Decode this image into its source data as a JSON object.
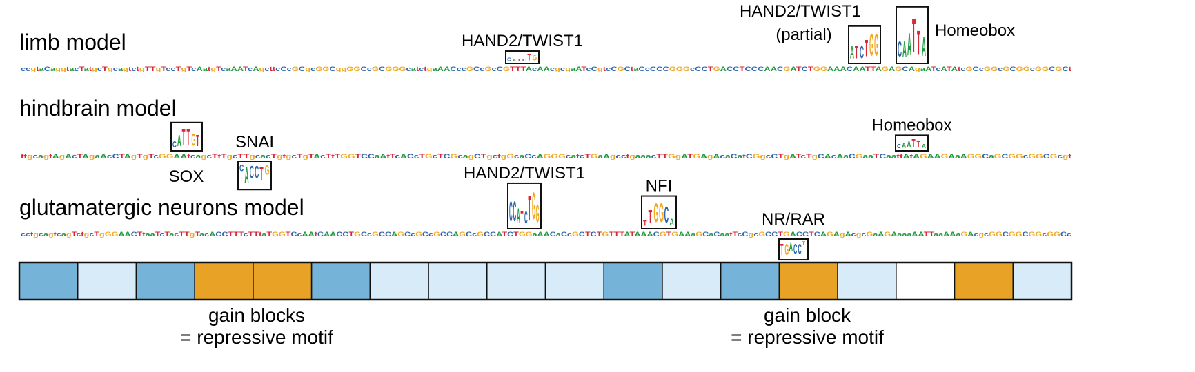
{
  "colors": {
    "A": "#1f9a3e",
    "C": "#2b64aa",
    "G": "#f2a922",
    "T": "#d62839",
    "block_dark": "#75b4d8",
    "block_light": "#d7ebf8",
    "block_white": "#ffffff",
    "block_gain": "#e8a326"
  },
  "tracks": [
    {
      "label": "limb model",
      "background": "ccgtaCaggtacTatgcTgcagtctgTTgTccTgTcAatgTcaAATcAgcttcCcGCgcGGCggGGCcGCGGGcatctgaAACccGCcGcCGTTTAcAAcgcgaATcCgtcCGCtaCcCCCGGGcCCTGACCTCCCAACGATCTGGAAACAATTAGAGCAgaATcATAtcGCcGGcGCGGcGGCGCt",
      "motifs": [
        {
          "key": "limb_hand2",
          "label": "HAND2/TWIST1",
          "sublabel": "",
          "letters": "CATCTG",
          "heights": [
            0.5,
            0.3,
            0.4,
            0.4,
            0.9,
            0.8
          ]
        },
        {
          "key": "limb_hand2_partial",
          "label": "HAND2/TWIST1",
          "sublabel": "(partial)",
          "letters": "ATCTGG",
          "heights": [
            1.0,
            1.0,
            1.0,
            1.4,
            1.8,
            1.8
          ]
        },
        {
          "key": "limb_homeobox",
          "label": "Homeobox",
          "sublabel": "",
          "letters": "CAATTA",
          "heights": [
            1.0,
            1.0,
            1.4,
            2.1,
            1.5,
            1.2
          ]
        }
      ]
    },
    {
      "label": "hindbrain model",
      "background": "ttgcagtAgAcTAgaAcCTAgTgTcGGAAtcagcTtTgcTTgcacTgtgcTgTAcTtTGGTCCaAtTcACcTGcTCGcagCTgctgGcaCcAGGGcatcTGaAgcctgaaacTTGgATGAgAcaCatCGgcCTgATcTgCAcAaCGaaTCaattAtAGAAGAaAGGCaGCGGcGGCGcgt",
      "motifs": [
        {
          "key": "hb_sox",
          "label": "SOX",
          "sublabel": "",
          "letters": "CATTGT",
          "heights": [
            0.8,
            1.4,
            2.0,
            2.0,
            1.5,
            1.4
          ]
        },
        {
          "key": "hb_snai",
          "label": "SNAI",
          "sublabel": "",
          "letters": "CACCTG",
          "heights": [
            0.5,
            1.2,
            0.9,
            0.9,
            1.0,
            0.7
          ]
        },
        {
          "key": "hb_homeobox",
          "label": "Homeobox",
          "sublabel": "",
          "letters": "CAATTA",
          "heights": [
            0.3,
            0.4,
            0.5,
            0.6,
            0.5,
            0.3
          ]
        }
      ]
    },
    {
      "label": "glutamatergic neurons model",
      "background": "cctgcagtcagTctgcTgGGAACTtaaTcTacTTgTacACCTTTcTTtaTGGTCcAAtCAACCTGCcGCCAGCcGCcGCCAGCcGCCATCTGGaAACaCcGCTCTGTTTATAAACGTGAAaGCaCaatTcCgcGCCTGACCTCAGAgAcgcGaAGAaaaAATTaaAAaGAcgcGGCGGCGGcGGCc",
      "motifs": [
        {
          "key": "gn_hand2",
          "label": "HAND2/TWIST1",
          "sublabel": "",
          "letters": "CCATCTGG",
          "heights": [
            1.5,
            1.5,
            1.1,
            0.9,
            0.9,
            1.8,
            2.0,
            1.3
          ]
        },
        {
          "key": "gn_nfi",
          "label": "NFI",
          "sublabel": "",
          "letters": "TTGGCA",
          "heights": [
            0.4,
            1.0,
            1.4,
            1.4,
            1.2,
            0.5
          ]
        },
        {
          "key": "gn_nrrar",
          "label": "NR/RAR",
          "sublabel": "",
          "letters": "TGACCT",
          "heights": [
            1.4,
            1.4,
            1.0,
            1.3,
            1.3,
            0.4
          ]
        }
      ]
    }
  ],
  "blocks": [
    "dark",
    "light",
    "dark",
    "gain",
    "gain",
    "dark",
    "light",
    "light",
    "light",
    "light",
    "dark",
    "light",
    "dark",
    "gain",
    "light",
    "white",
    "gain",
    "light"
  ],
  "annotations": [
    {
      "line1": "gain blocks",
      "line2": "= repressive motif"
    },
    {
      "line1": "gain block",
      "line2": "= repressive motif"
    }
  ]
}
